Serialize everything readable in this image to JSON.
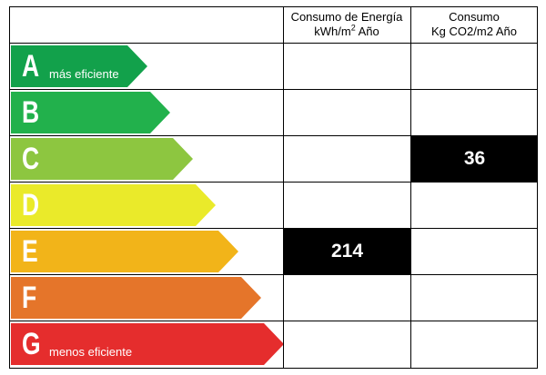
{
  "headers": {
    "energy_line1": "Consumo de Energía",
    "energy_line2": "kWh/m",
    "energy_sup": "2",
    "energy_line2b": " Año",
    "co2_line1": "Consumo",
    "co2_line2": "Kg CO2/m2 Año"
  },
  "ratings": [
    {
      "letter": "A",
      "label": "más eficiente",
      "color": "#12a14b"
    },
    {
      "letter": "B",
      "label": "",
      "color": "#22b14c"
    },
    {
      "letter": "C",
      "label": "",
      "color": "#8dc640"
    },
    {
      "letter": "D",
      "label": "",
      "color": "#eaea2a"
    },
    {
      "letter": "E",
      "label": "",
      "color": "#f2b419"
    },
    {
      "letter": "F",
      "label": "",
      "color": "#e5752a"
    },
    {
      "letter": "G",
      "label": "menos eficiente",
      "color": "#e52d2d"
    }
  ],
  "energy_value": {
    "rating": "E",
    "value": "214"
  },
  "co2_value": {
    "rating": "C",
    "value": "36"
  }
}
